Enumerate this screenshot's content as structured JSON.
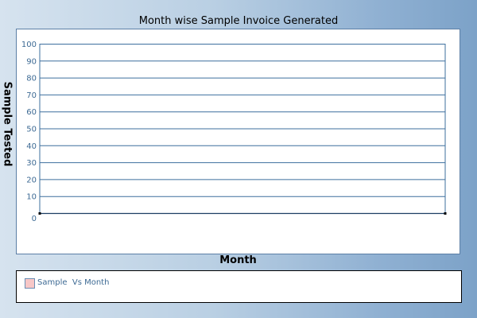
{
  "chart_data": {
    "type": "line",
    "title": "Month wise Sample Invoice Generated",
    "xlabel": "Month",
    "ylabel": "Sample Tested",
    "ylim": [
      0,
      100
    ],
    "yticks": [
      0,
      10,
      20,
      30,
      40,
      50,
      60,
      70,
      80,
      90,
      100
    ],
    "grid": true,
    "categories": [],
    "series": [
      {
        "name": "Sample  Vs Month",
        "values": []
      }
    ],
    "legend_position": "bottom"
  },
  "colors": {
    "grid": "#3d6f9e",
    "tick_text": "#3d6a94",
    "legend_swatch": "#f7c7c7"
  }
}
